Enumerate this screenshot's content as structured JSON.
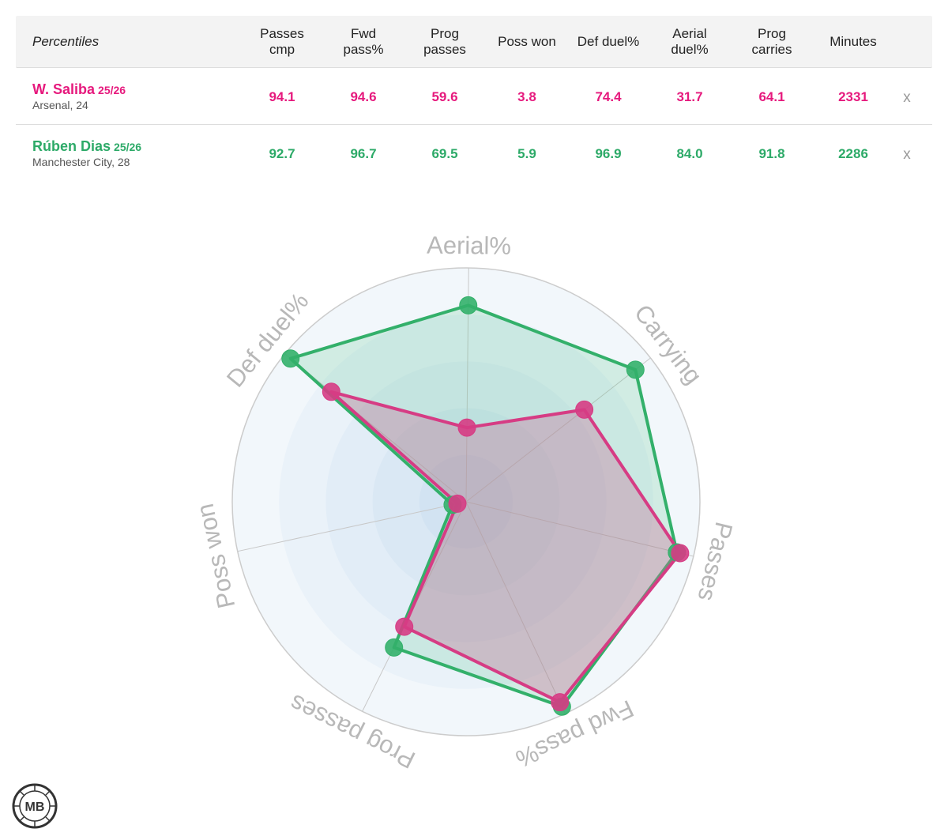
{
  "table": {
    "label": "Percentiles",
    "columns": [
      [
        "Passes",
        "cmp"
      ],
      [
        "Fwd",
        "pass%"
      ],
      [
        "Prog",
        "passes"
      ],
      [
        "Poss won"
      ],
      [
        "Def duel%"
      ],
      [
        "Aerial",
        "duel%"
      ],
      [
        "Prog",
        "carries"
      ],
      [
        "Minutes"
      ]
    ],
    "players": [
      {
        "name": "W. Saliba",
        "season": "25/26",
        "club": "Arsenal, 24",
        "values": [
          "94.1",
          "94.6",
          "59.6",
          "3.8",
          "74.4",
          "31.7",
          "64.1",
          "2331"
        ],
        "color": "#e6197d",
        "remove_label": "x"
      },
      {
        "name": "Rúben Dias",
        "season": "25/26",
        "club": "Manchester City, 28",
        "values": [
          "92.7",
          "96.7",
          "69.5",
          "5.9",
          "96.9",
          "84.0",
          "91.8",
          "2286"
        ],
        "color": "#2daa68",
        "remove_label": "x"
      }
    ]
  },
  "chart_data": {
    "type": "radar",
    "axes": [
      "Aerial%",
      "Carrying",
      "Passes",
      "Fwd pass%",
      "Prog passes",
      "Poss won",
      "Def duel%"
    ],
    "range": [
      0,
      100
    ],
    "series": [
      {
        "name": "W. Saliba",
        "values": [
          31.7,
          64.1,
          94.1,
          94.6,
          59.6,
          3.8,
          74.4
        ],
        "color": "#d63c84"
      },
      {
        "name": "Rúben Dias",
        "values": [
          84.0,
          91.8,
          92.7,
          96.7,
          69.5,
          5.9,
          96.9
        ],
        "color": "#33b06a"
      }
    ]
  },
  "logo": {
    "text": "MB",
    "color": "#333333"
  }
}
